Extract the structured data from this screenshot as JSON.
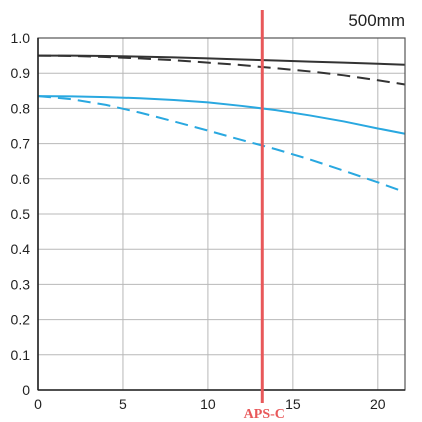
{
  "chart_data": {
    "type": "line",
    "title": "500mm",
    "xlabel": "",
    "ylabel": "",
    "xlim": [
      0,
      21.6
    ],
    "ylim": [
      0,
      1.0
    ],
    "x_ticks": [
      "0",
      "5",
      "10",
      "15",
      "20"
    ],
    "y_ticks": [
      "0",
      "0.1",
      "0.2",
      "0.3",
      "0.4",
      "0.5",
      "0.6",
      "0.7",
      "0.8",
      "0.9",
      "1.0"
    ],
    "grid": true,
    "series": [
      {
        "color": "#333333",
        "style": "solid",
        "x": [
          0,
          2,
          4,
          6,
          8,
          10,
          12,
          14,
          16,
          18,
          20,
          21.6
        ],
        "y": [
          0.95,
          0.95,
          0.949,
          0.947,
          0.945,
          0.942,
          0.939,
          0.936,
          0.933,
          0.93,
          0.927,
          0.924
        ]
      },
      {
        "color": "#333333",
        "style": "dashed",
        "x": [
          0,
          2,
          4,
          6,
          8,
          10,
          12,
          14,
          16,
          18,
          20,
          21.6
        ],
        "y": [
          0.95,
          0.949,
          0.946,
          0.942,
          0.937,
          0.93,
          0.923,
          0.914,
          0.905,
          0.894,
          0.88,
          0.868
        ]
      },
      {
        "color": "#29a8e0",
        "style": "solid",
        "x": [
          0,
          2,
          4,
          6,
          8,
          10,
          12,
          14,
          16,
          18,
          20,
          21.6
        ],
        "y": [
          0.835,
          0.834,
          0.832,
          0.829,
          0.824,
          0.817,
          0.807,
          0.795,
          0.78,
          0.763,
          0.743,
          0.728
        ]
      },
      {
        "color": "#29a8e0",
        "style": "dashed",
        "x": [
          0,
          2,
          4,
          6,
          8,
          10,
          12,
          14,
          16,
          18,
          20,
          21.6
        ],
        "y": [
          0.835,
          0.826,
          0.81,
          0.788,
          0.763,
          0.737,
          0.71,
          0.684,
          0.655,
          0.623,
          0.59,
          0.562
        ]
      }
    ],
    "annotation": {
      "label": "APS-C",
      "x": 13.2,
      "color": "#e8585a"
    }
  }
}
